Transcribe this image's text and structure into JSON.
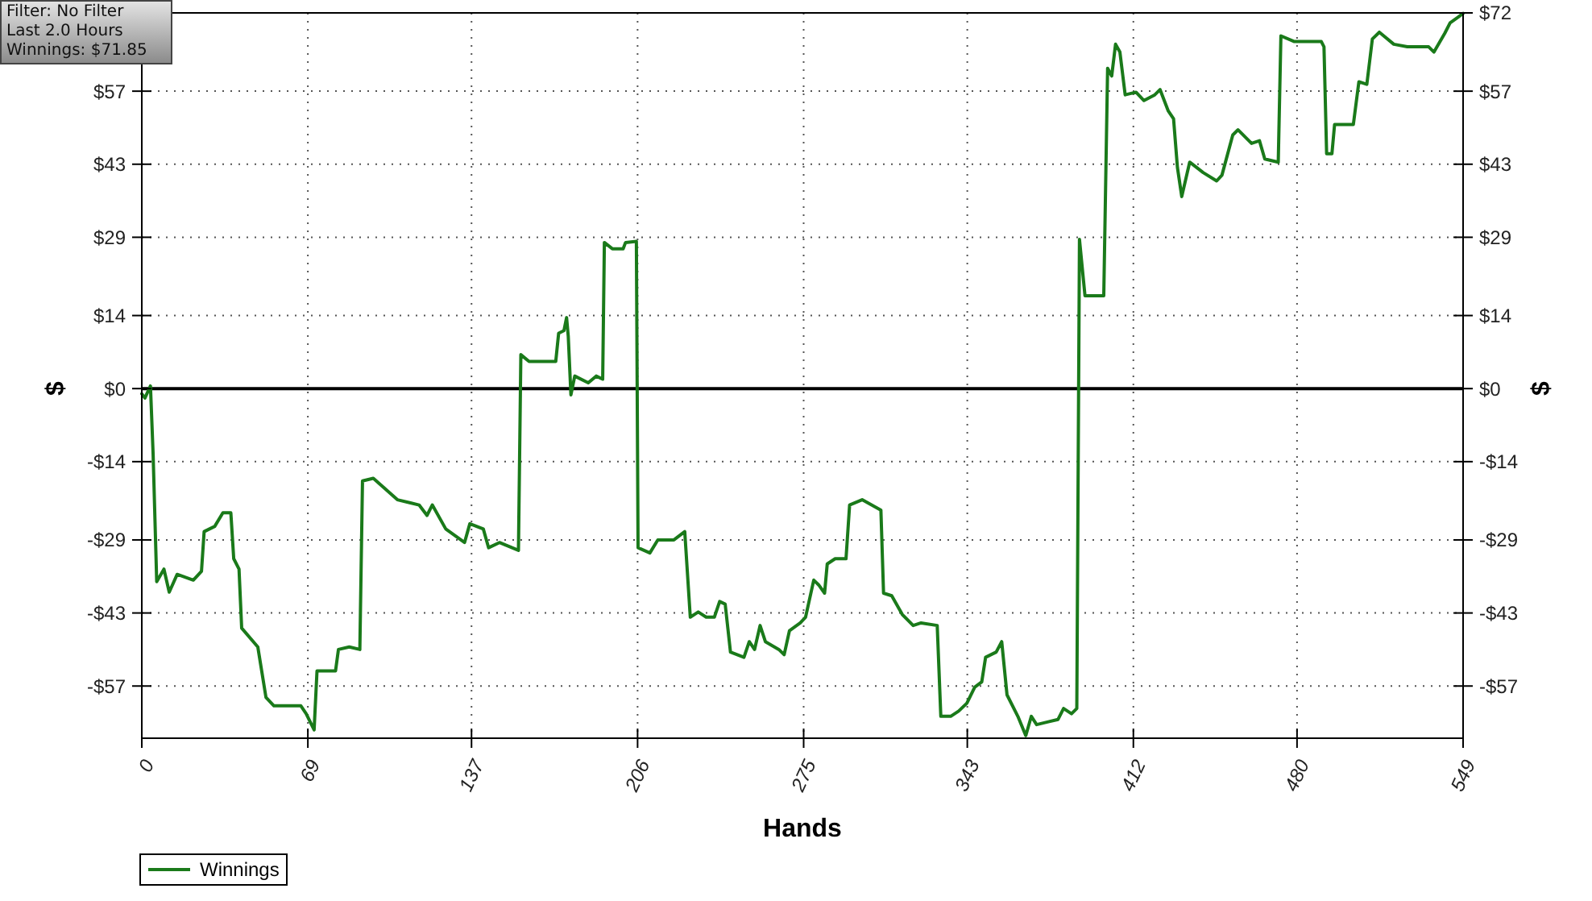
{
  "chart_data": {
    "type": "line",
    "xlabel": "Hands",
    "ylabel": "$",
    "y2label": "$",
    "annotations": [
      "Filter: No Filter",
      "Last 2.0 Hours",
      "Winnings: $71.85"
    ],
    "xlim": [
      0,
      549
    ],
    "xticks": [
      0,
      69,
      137,
      206,
      275,
      343,
      412,
      480,
      549
    ],
    "ylim": [
      -67,
      72
    ],
    "yticks": [
      {
        "value": -57,
        "label": "-$57"
      },
      {
        "value": -43,
        "label": "-$43"
      },
      {
        "value": -29,
        "label": "-$29"
      },
      {
        "value": -14,
        "label": "-$14"
      },
      {
        "value": 0,
        "label": "$0"
      },
      {
        "value": 14,
        "label": "$14"
      },
      {
        "value": 29,
        "label": "$29"
      },
      {
        "value": 43,
        "label": "$43"
      },
      {
        "value": 57,
        "label": "$57"
      },
      {
        "value": 72,
        "label": null
      }
    ],
    "y2lim": [
      -67,
      72
    ],
    "y2ticks": [
      {
        "value": -57,
        "label": "-$57"
      },
      {
        "value": -43,
        "label": "-$43"
      },
      {
        "value": -29,
        "label": "-$29"
      },
      {
        "value": -14,
        "label": "-$14"
      },
      {
        "value": 0,
        "label": "$0"
      },
      {
        "value": 14,
        "label": "$14"
      },
      {
        "value": 29,
        "label": "$29"
      },
      {
        "value": 43,
        "label": "$43"
      },
      {
        "value": 57,
        "label": "$57"
      },
      {
        "value": 72,
        "label": "$72"
      }
    ],
    "grid": true,
    "legend": "bottom left",
    "marker": "none",
    "line_style": "solid",
    "ref_lines": [
      {
        "axis": "y",
        "value": 0,
        "label": null,
        "color": "#000000"
      }
    ],
    "series": [
      {
        "name": "Winnings",
        "color": "#1a7a1a",
        "x": [
          0,
          1.3,
          3.6,
          4.7,
          6.2,
          9.2,
          11.4,
          14.7,
          21.4,
          24.8,
          25.9,
          30.3,
          33.7,
          37,
          38.2,
          40.4,
          41.5,
          48.2,
          51.6,
          54.9,
          66.1,
          68.3,
          71.6,
          72.8,
          80.5,
          81.7,
          86.2,
          90.6,
          91.7,
          96.2,
          106.2,
          115.2,
          118.5,
          120.7,
          126.3,
          134.1,
          136.3,
          141.9,
          144.1,
          148.6,
          156.5,
          157.5,
          160.9,
          172,
          173.2,
          175.4,
          176.5,
          177.2,
          178.3,
          179.9,
          185.5,
          188.8,
          191.5,
          192.2,
          195.5,
          200,
          201,
          205.5,
          206.2,
          211.1,
          214.4,
          221.1,
          225.6,
          227.9,
          231.2,
          234.5,
          237.9,
          240.1,
          242.4,
          244.6,
          250.2,
          252.4,
          254.6,
          256.9,
          259.1,
          264.7,
          266.9,
          269.1,
          273.6,
          275.8,
          279.2,
          281.4,
          283.7,
          284.8,
          288.1,
          292.6,
          294.1,
          299.3,
          307.1,
          308.2,
          311.6,
          316,
          320.5,
          323.8,
          330.5,
          332,
          336.1,
          339.4,
          342.8,
          346.1,
          349,
          350.6,
          355,
          357.3,
          359.5,
          364,
          367.3,
          369.6,
          371.8,
          376.3,
          380.7,
          383,
          386.3,
          388.5,
          389.6,
          391.9,
          399.7,
          401.3,
          403,
          404.6,
          406.4,
          408.6,
          413.1,
          416.4,
          420.9,
          423.1,
          426.5,
          428.7,
          430.3,
          432.1,
          435.4,
          441,
          446.6,
          448.8,
          453.3,
          455.5,
          461.1,
          464.4,
          466.6,
          472.2,
          473.3,
          478.9,
          490.1,
          491.2,
          492.3,
          494.5,
          495.6,
          503.4,
          505.7,
          509,
          511.3,
          514.2,
          520.2,
          525.8,
          534.7,
          536.9,
          541.4,
          543.6,
          547,
          549
        ],
        "values": [
          -1,
          -1.8,
          0.5,
          -12.5,
          -37,
          -34.6,
          -39,
          -35.6,
          -36.7,
          -35,
          -27.4,
          -26.4,
          -23.8,
          -23.8,
          -32.6,
          -34.6,
          -45.9,
          -49.5,
          -59.2,
          -60.8,
          -60.8,
          -62.3,
          -65.4,
          -54.1,
          -54.1,
          -50,
          -49.5,
          -50,
          -17.7,
          -17.2,
          -21.3,
          -22.3,
          -24.3,
          -22.3,
          -26.9,
          -29.5,
          -25.9,
          -26.9,
          -30.5,
          -29.5,
          -31,
          6.5,
          5.2,
          5.2,
          10.6,
          11.1,
          13.6,
          10,
          -1.2,
          2.4,
          1.1,
          2.4,
          1.8,
          28,
          26.8,
          26.8,
          28,
          28.2,
          -30.5,
          -31.5,
          -29,
          -29,
          -27.4,
          -43.8,
          -42.8,
          -43.8,
          -43.8,
          -40.8,
          -41.3,
          -50.5,
          -51.5,
          -48.5,
          -50,
          -45.4,
          -48.5,
          -50,
          -51,
          -46.4,
          -44.9,
          -43.8,
          -36.7,
          -37.7,
          -39.2,
          -33.6,
          -32.6,
          -32.6,
          -22.3,
          -21.3,
          -23.3,
          -39.2,
          -39.7,
          -43.3,
          -45.4,
          -44.9,
          -45.4,
          -62.8,
          -62.8,
          -61.8,
          -60.3,
          -57.2,
          -56.2,
          -51.5,
          -50.5,
          -48.5,
          -58.7,
          -62.8,
          -66.5,
          -62.8,
          -64.4,
          -63.9,
          -63.4,
          -61.3,
          -62.3,
          -61.3,
          28.6,
          17.8,
          17.8,
          61.4,
          59.9,
          66,
          64.5,
          56.3,
          56.8,
          55.2,
          56.3,
          57.3,
          53.2,
          51.7,
          42.4,
          36.8,
          43.4,
          41.4,
          39.8,
          40.9,
          48.6,
          49.6,
          47,
          47.5,
          44,
          43.4,
          67.6,
          66.5,
          66.5,
          65.5,
          45,
          45,
          50.6,
          50.6,
          58.8,
          58.3,
          67,
          68.3,
          66,
          65.5,
          65.5,
          64.5,
          68.1,
          70.1,
          71.2,
          71.9
        ]
      }
    ]
  }
}
